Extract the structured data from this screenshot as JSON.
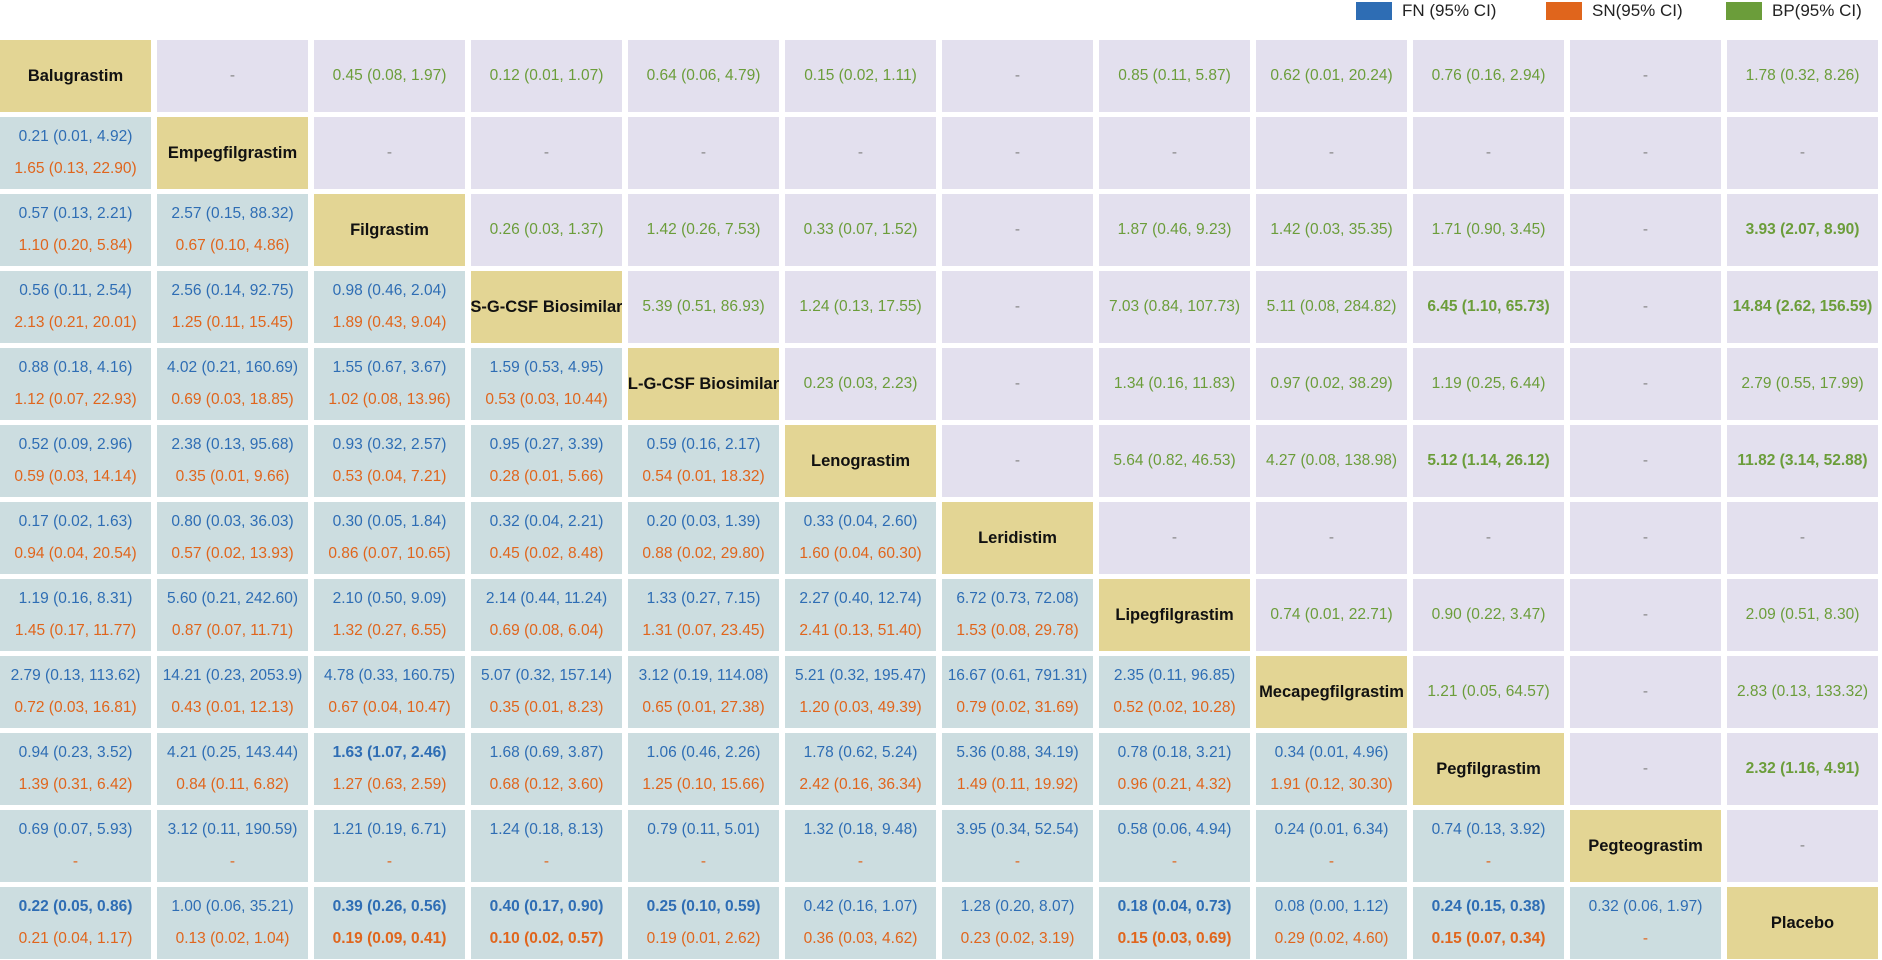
{
  "legend": [
    {
      "key": "fn",
      "label": "FN  (95% CI)",
      "color": "#2e6db4"
    },
    {
      "key": "sn",
      "label": "SN(95% CI)",
      "color": "#e0651c"
    },
    {
      "key": "bp",
      "label": "BP(95% CI)",
      "color": "#6b9d3a"
    }
  ],
  "chart_data": {
    "type": "table",
    "title": "",
    "treatments": [
      "Balugrastim",
      "Empegfilgrastim",
      "Filgrastim",
      "S-G-CSF Biosimilar",
      "L-G-CSF Biosimilar",
      "Lenograstim",
      "Leridistim",
      "Lipegfilgrastim",
      "Mecapegfilgrastim",
      "Pegfilgrastim",
      "Pegteograstim",
      "Placebo"
    ],
    "upper_bp": [
      [
        null,
        "-",
        "0.45 (0.08, 1.97)",
        "0.12 (0.01, 1.07)",
        "0.64 (0.06, 4.79)",
        "0.15 (0.02, 1.11)",
        "-",
        "0.85 (0.11, 5.87)",
        "0.62 (0.01, 20.24)",
        "0.76 (0.16, 2.94)",
        "-",
        "1.78 (0.32, 8.26)"
      ],
      [
        null,
        null,
        "-",
        "-",
        "-",
        "-",
        "-",
        "-",
        "-",
        "-",
        "-",
        "-"
      ],
      [
        null,
        null,
        null,
        "0.26 (0.03, 1.37)",
        "1.42 (0.26, 7.53)",
        "0.33 (0.07, 1.52)",
        "-",
        "1.87 (0.46, 9.23)",
        "1.42 (0.03, 35.35)",
        "1.71 (0.90, 3.45)",
        "-",
        "3.93 (2.07, 8.90)"
      ],
      [
        null,
        null,
        null,
        null,
        "5.39 (0.51, 86.93)",
        "1.24 (0.13, 17.55)",
        "-",
        "7.03 (0.84, 107.73)",
        "5.11 (0.08, 284.82)",
        "6.45 (1.10, 65.73)",
        "-",
        "14.84 (2.62, 156.59)"
      ],
      [
        null,
        null,
        null,
        null,
        null,
        "0.23 (0.03, 2.23)",
        "-",
        "1.34 (0.16, 11.83)",
        "0.97 (0.02, 38.29)",
        "1.19 (0.25, 6.44)",
        "-",
        "2.79 (0.55, 17.99)"
      ],
      [
        null,
        null,
        null,
        null,
        null,
        null,
        "-",
        "5.64 (0.82, 46.53)",
        "4.27 (0.08, 138.98)",
        "5.12 (1.14, 26.12)",
        "-",
        "11.82 (3.14, 52.88)"
      ],
      [
        null,
        null,
        null,
        null,
        null,
        null,
        null,
        "-",
        "-",
        "-",
        "-",
        "-"
      ],
      [
        null,
        null,
        null,
        null,
        null,
        null,
        null,
        null,
        "0.74 (0.01, 22.71)",
        "0.90 (0.22, 3.47)",
        "-",
        "2.09 (0.51, 8.30)"
      ],
      [
        null,
        null,
        null,
        null,
        null,
        null,
        null,
        null,
        null,
        "1.21 (0.05, 64.57)",
        "-",
        "2.83 (0.13, 133.32)"
      ],
      [
        null,
        null,
        null,
        null,
        null,
        null,
        null,
        null,
        null,
        null,
        "-",
        "2.32 (1.16, 4.91)"
      ],
      [
        null,
        null,
        null,
        null,
        null,
        null,
        null,
        null,
        null,
        null,
        null,
        "-"
      ],
      [
        null,
        null,
        null,
        null,
        null,
        null,
        null,
        null,
        null,
        null,
        null,
        null
      ]
    ],
    "upper_bp_bold": [
      [
        2,
        11
      ],
      [
        3,
        9
      ],
      [
        3,
        11
      ],
      [
        5,
        9
      ],
      [
        5,
        11
      ],
      [
        9,
        11
      ]
    ],
    "lower_fn": [
      [],
      [
        "0.21 (0.01, 4.92)"
      ],
      [
        "0.57 (0.13, 2.21)",
        "2.57 (0.15, 88.32)"
      ],
      [
        "0.56 (0.11, 2.54)",
        "2.56 (0.14, 92.75)",
        "0.98 (0.46, 2.04)"
      ],
      [
        "0.88 (0.18, 4.16)",
        "4.02 (0.21, 160.69)",
        "1.55 (0.67, 3.67)",
        "1.59 (0.53, 4.95)"
      ],
      [
        "0.52 (0.09, 2.96)",
        "2.38 (0.13, 95.68)",
        "0.93 (0.32, 2.57)",
        "0.95 (0.27, 3.39)",
        "0.59 (0.16, 2.17)"
      ],
      [
        "0.17 (0.02, 1.63)",
        "0.80 (0.03, 36.03)",
        "0.30 (0.05, 1.84)",
        "0.32 (0.04, 2.21)",
        "0.20 (0.03, 1.39)",
        "0.33 (0.04, 2.60)"
      ],
      [
        "1.19 (0.16, 8.31)",
        "5.60 (0.21, 242.60)",
        "2.10 (0.50, 9.09)",
        "2.14 (0.44, 11.24)",
        "1.33 (0.27, 7.15)",
        "2.27 (0.40, 12.74)",
        "6.72 (0.73, 72.08)"
      ],
      [
        "2.79 (0.13, 113.62)",
        "14.21 (0.23, 2053.9)",
        "4.78 (0.33, 160.75)",
        "5.07 (0.32, 157.14)",
        "3.12 (0.19, 114.08)",
        "5.21 (0.32, 195.47)",
        "16.67 (0.61, 791.31)",
        "2.35 (0.11, 96.85)"
      ],
      [
        "0.94 (0.23, 3.52)",
        "4.21 (0.25, 143.44)",
        "1.63 (1.07, 2.46)",
        "1.68 (0.69, 3.87)",
        "1.06 (0.46, 2.26)",
        "1.78 (0.62, 5.24)",
        "5.36 (0.88, 34.19)",
        "0.78 (0.18, 3.21)",
        "0.34 (0.01, 4.96)"
      ],
      [
        "0.69 (0.07, 5.93)",
        "3.12 (0.11, 190.59)",
        "1.21 (0.19, 6.71)",
        "1.24 (0.18, 8.13)",
        "0.79 (0.11, 5.01)",
        "1.32 (0.18, 9.48)",
        "3.95 (0.34, 52.54)",
        "0.58 (0.06, 4.94)",
        "0.24 (0.01, 6.34)",
        "0.74 (0.13, 3.92)"
      ],
      [
        "0.22 (0.05, 0.86)",
        "1.00 (0.06, 35.21)",
        "0.39 (0.26, 0.56)",
        "0.40 (0.17, 0.90)",
        "0.25 (0.10, 0.59)",
        "0.42 (0.16, 1.07)",
        "1.28 (0.20, 8.07)",
        "0.18 (0.04, 0.73)",
        "0.08 (0.00, 1.12)",
        "0.24 (0.15, 0.38)",
        "0.32 (0.06, 1.97)"
      ]
    ],
    "lower_fn_bold": [
      [
        9,
        2
      ],
      [
        11,
        0
      ],
      [
        11,
        2
      ],
      [
        11,
        3
      ],
      [
        11,
        4
      ],
      [
        11,
        7
      ],
      [
        11,
        9
      ]
    ],
    "lower_sn": [
      [],
      [
        "1.65 (0.13, 22.90)"
      ],
      [
        "1.10 (0.20, 5.84)",
        "0.67 (0.10, 4.86)"
      ],
      [
        "2.13 (0.21, 20.01)",
        "1.25 (0.11, 15.45)",
        "1.89 (0.43, 9.04)"
      ],
      [
        "1.12 (0.07, 22.93)",
        "0.69 (0.03, 18.85)",
        "1.02 (0.08, 13.96)",
        "0.53 (0.03, 10.44)"
      ],
      [
        "0.59 (0.03, 14.14)",
        "0.35 (0.01, 9.66)",
        "0.53 (0.04, 7.21)",
        "0.28 (0.01, 5.66)",
        "0.54 (0.01, 18.32)"
      ],
      [
        "0.94 (0.04, 20.54)",
        "0.57 (0.02, 13.93)",
        "0.86 (0.07, 10.65)",
        "0.45 (0.02, 8.48)",
        "0.88 (0.02, 29.80)",
        "1.60 (0.04, 60.30)"
      ],
      [
        "1.45 (0.17, 11.77)",
        "0.87 (0.07, 11.71)",
        "1.32 (0.27, 6.55)",
        "0.69 (0.08, 6.04)",
        "1.31 (0.07, 23.45)",
        "2.41 (0.13, 51.40)",
        "1.53 (0.08, 29.78)"
      ],
      [
        "0.72 (0.03, 16.81)",
        "0.43 (0.01, 12.13)",
        "0.67 (0.04, 10.47)",
        "0.35 (0.01, 8.23)",
        "0.65 (0.01, 27.38)",
        "1.20 (0.03, 49.39)",
        "0.79 (0.02, 31.69)",
        "0.52 (0.02, 10.28)"
      ],
      [
        "1.39 (0.31, 6.42)",
        "0.84 (0.11, 6.82)",
        "1.27 (0.63, 2.59)",
        "0.68 (0.12, 3.60)",
        "1.25 (0.10, 15.66)",
        "2.42 (0.16, 36.34)",
        "1.49 (0.11, 19.92)",
        "0.96 (0.21, 4.32)",
        "1.91 (0.12, 30.30)"
      ],
      [
        "-",
        "-",
        "-",
        "-",
        "-",
        "-",
        "-",
        "-",
        "-",
        "-"
      ],
      [
        "0.21 (0.04, 1.17)",
        "0.13 (0.02, 1.04)",
        "0.19 (0.09, 0.41)",
        "0.10 (0.02, 0.57)",
        "0.19 (0.01, 2.62)",
        "0.36 (0.03, 4.62)",
        "0.23 (0.02, 3.19)",
        "0.15 (0.03, 0.69)",
        "0.29 (0.02, 4.60)",
        "0.15 (0.07, 0.34)",
        "-"
      ]
    ],
    "lower_sn_bold": [
      [
        11,
        2
      ],
      [
        11,
        3
      ],
      [
        11,
        7
      ],
      [
        11,
        9
      ]
    ]
  }
}
